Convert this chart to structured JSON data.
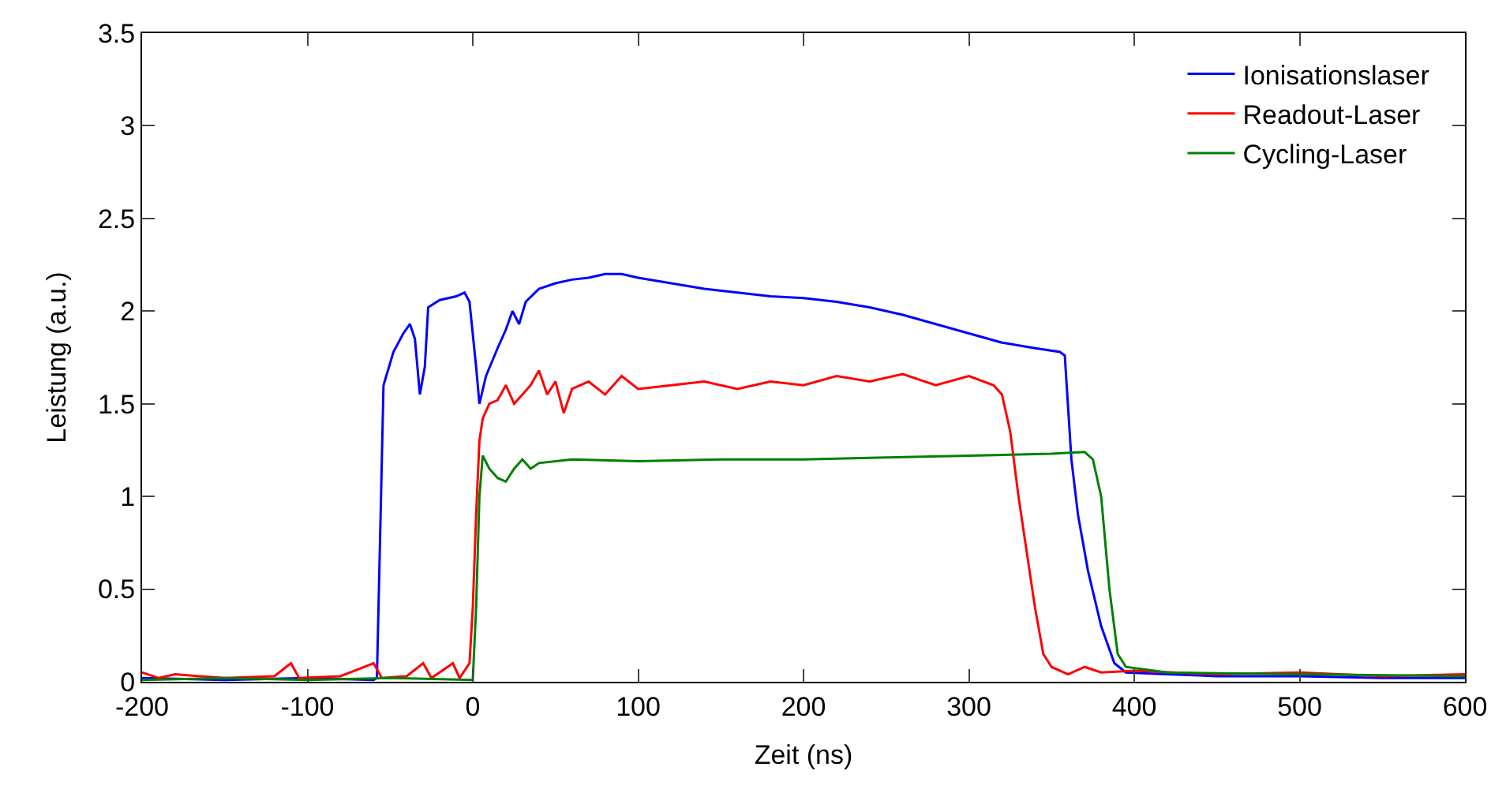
{
  "chart_data": {
    "type": "line",
    "xlabel": "Zeit (ns)",
    "ylabel": "Leistung (a.u.)",
    "xlim": [
      -200,
      600
    ],
    "xticks": [
      -200,
      -100,
      0,
      100,
      200,
      300,
      400,
      500,
      600
    ],
    "ylim": [
      0,
      3.5
    ],
    "yticks": [
      0,
      0.5,
      1,
      1.5,
      2,
      2.5,
      3,
      3.5
    ],
    "legend": "top right",
    "marker": "none",
    "line_style": "solid",
    "series": [
      {
        "name": "Ionisationslaser",
        "color": "#0000ff",
        "x": [
          -200,
          -150,
          -100,
          -60,
          -58,
          -56,
          -54,
          -48,
          -42,
          -38,
          -35,
          -32,
          -29,
          -27,
          -20,
          -10,
          -5,
          -2,
          2,
          4,
          8,
          15,
          20,
          24,
          28,
          32,
          40,
          50,
          60,
          70,
          80,
          90,
          100,
          120,
          140,
          160,
          180,
          200,
          220,
          240,
          260,
          280,
          300,
          320,
          340,
          355,
          358,
          362,
          366,
          372,
          380,
          388,
          395,
          420,
          450,
          500,
          550,
          600
        ],
        "values": [
          0.02,
          0.01,
          0.02,
          0.01,
          0.02,
          0.8,
          1.6,
          1.78,
          1.88,
          1.93,
          1.85,
          1.55,
          1.7,
          2.02,
          2.06,
          2.08,
          2.1,
          2.05,
          1.7,
          1.5,
          1.65,
          1.8,
          1.9,
          2.0,
          1.93,
          2.05,
          2.12,
          2.15,
          2.17,
          2.18,
          2.2,
          2.2,
          2.18,
          2.15,
          2.12,
          2.1,
          2.08,
          2.07,
          2.05,
          2.02,
          1.98,
          1.93,
          1.88,
          1.83,
          1.8,
          1.78,
          1.76,
          1.2,
          0.9,
          0.6,
          0.3,
          0.1,
          0.05,
          0.04,
          0.03,
          0.03,
          0.02,
          0.02
        ]
      },
      {
        "name": "Readout-Laser",
        "color": "#ff0000",
        "x": [
          -200,
          -190,
          -180,
          -150,
          -120,
          -110,
          -105,
          -80,
          -60,
          -55,
          -40,
          -30,
          -25,
          -12,
          -8,
          -2,
          0,
          2,
          4,
          6,
          10,
          15,
          20,
          25,
          30,
          35,
          40,
          45,
          50,
          55,
          60,
          70,
          80,
          90,
          100,
          120,
          140,
          160,
          180,
          200,
          220,
          240,
          260,
          280,
          300,
          315,
          320,
          325,
          330,
          335,
          340,
          345,
          350,
          360,
          370,
          380,
          400,
          450,
          500,
          550,
          600
        ],
        "values": [
          0.05,
          0.02,
          0.04,
          0.02,
          0.03,
          0.1,
          0.02,
          0.03,
          0.1,
          0.02,
          0.03,
          0.1,
          0.02,
          0.1,
          0.02,
          0.1,
          0.4,
          0.9,
          1.3,
          1.42,
          1.5,
          1.52,
          1.6,
          1.5,
          1.55,
          1.6,
          1.68,
          1.55,
          1.62,
          1.45,
          1.58,
          1.62,
          1.55,
          1.65,
          1.58,
          1.6,
          1.62,
          1.58,
          1.62,
          1.6,
          1.65,
          1.62,
          1.66,
          1.6,
          1.65,
          1.6,
          1.55,
          1.35,
          1.0,
          0.7,
          0.4,
          0.15,
          0.08,
          0.04,
          0.08,
          0.05,
          0.06,
          0.04,
          0.05,
          0.03,
          0.04
        ]
      },
      {
        "name": "Cycling-Laser",
        "color": "#008000",
        "x": [
          -200,
          -150,
          -100,
          -50,
          0,
          2,
          4,
          6,
          10,
          15,
          20,
          25,
          30,
          35,
          40,
          60,
          100,
          150,
          200,
          250,
          300,
          350,
          370,
          375,
          380,
          385,
          390,
          395,
          420,
          500,
          600
        ],
        "values": [
          0.01,
          0.02,
          0.01,
          0.02,
          0.01,
          0.4,
          1.0,
          1.22,
          1.15,
          1.1,
          1.08,
          1.15,
          1.2,
          1.15,
          1.18,
          1.2,
          1.19,
          1.2,
          1.2,
          1.21,
          1.22,
          1.23,
          1.24,
          1.2,
          1.0,
          0.5,
          0.15,
          0.08,
          0.05,
          0.04,
          0.03
        ]
      }
    ]
  }
}
